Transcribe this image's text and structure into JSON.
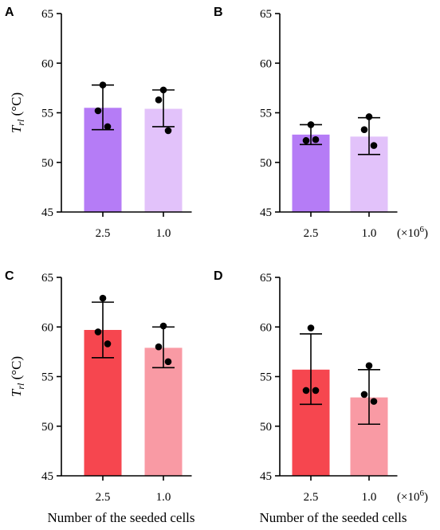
{
  "figure": {
    "xlabel": "Number of the seeded cells",
    "ylabel": "T rl (°C)",
    "ylabel_main": "T",
    "ylabel_sub": "rl",
    "ylabel_unit": "(°C)",
    "unit_note_prefix": "(×10",
    "unit_note_exp": "6",
    "unit_note_suffix": ")"
  },
  "chart_data": [
    {
      "panel": "A",
      "type": "bar",
      "categories": [
        "2.5",
        "1.0"
      ],
      "values": [
        55.5,
        55.4
      ],
      "error_low": [
        53.3,
        53.6
      ],
      "error_high": [
        57.8,
        57.3
      ],
      "points": [
        [
          57.8,
          55.2,
          53.6
        ],
        [
          57.3,
          56.3,
          53.2
        ]
      ],
      "colors": [
        "#b57cf6",
        "#e2c2fa"
      ],
      "ylim": [
        45,
        65
      ],
      "yticks": [
        "45",
        "50",
        "55",
        "60",
        "65"
      ],
      "ylabel": "T rl (°C)",
      "xlabel": ""
    },
    {
      "panel": "B",
      "type": "bar",
      "categories": [
        "2.5",
        "1.0"
      ],
      "values": [
        52.8,
        52.6
      ],
      "error_low": [
        51.8,
        50.8
      ],
      "error_high": [
        53.8,
        54.5
      ],
      "points": [
        [
          53.8,
          52.2,
          52.3
        ],
        [
          54.6,
          53.3,
          51.7
        ]
      ],
      "colors": [
        "#b57cf6",
        "#e2c2fa"
      ],
      "ylim": [
        45,
        65
      ],
      "yticks": [
        "45",
        "50",
        "55",
        "60",
        "65"
      ],
      "ylabel": "",
      "xlabel": ""
    },
    {
      "panel": "C",
      "type": "bar",
      "categories": [
        "2.5",
        "1.0"
      ],
      "values": [
        59.7,
        57.9
      ],
      "error_low": [
        56.9,
        55.9
      ],
      "error_high": [
        62.5,
        60.0
      ],
      "points": [
        [
          62.9,
          59.5,
          58.3
        ],
        [
          60.1,
          58.0,
          56.5
        ]
      ],
      "colors": [
        "#f6464f",
        "#f99aa4"
      ],
      "ylim": [
        45,
        65
      ],
      "yticks": [
        "45",
        "50",
        "55",
        "60",
        "65"
      ],
      "ylabel": "T rl (°C)",
      "xlabel": "Number of the seeded cells"
    },
    {
      "panel": "D",
      "type": "bar",
      "categories": [
        "2.5",
        "1.0"
      ],
      "values": [
        55.7,
        52.9
      ],
      "error_low": [
        52.2,
        50.2
      ],
      "error_high": [
        59.3,
        55.7
      ],
      "points": [
        [
          59.9,
          53.6,
          53.6
        ],
        [
          56.1,
          53.2,
          52.5
        ]
      ],
      "colors": [
        "#f6464f",
        "#f99aa4"
      ],
      "ylim": [
        45,
        65
      ],
      "yticks": [
        "45",
        "50",
        "55",
        "60",
        "65"
      ],
      "ylabel": "",
      "xlabel": "Number of the seeded cells"
    }
  ]
}
